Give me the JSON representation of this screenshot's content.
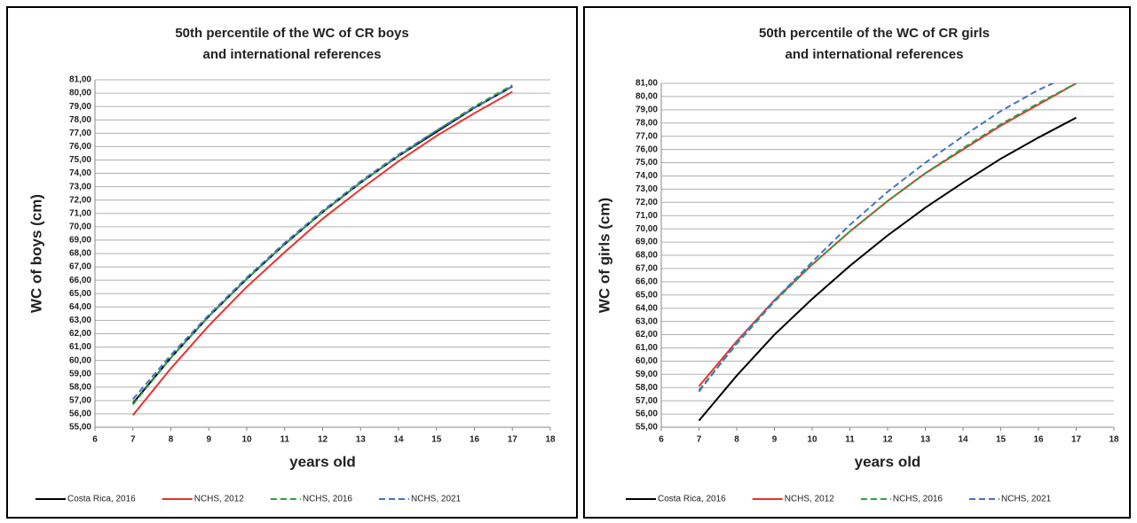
{
  "chart_data": [
    {
      "type": "line",
      "title": [
        "50th percentile of the WC of CR boys",
        "international references"
      ],
      "title_joiner": "and",
      "xlabel": "years old",
      "ylabel": "WC of boys (cm)",
      "x": [
        7,
        8,
        9,
        10,
        11,
        12,
        13,
        14,
        15,
        16,
        17
      ],
      "series": [
        {
          "name": "Costa Rica, 2016",
          "color": "#000000",
          "dash": false,
          "values": [
            56.8,
            60.2,
            63.3,
            66.1,
            68.7,
            71.1,
            73.3,
            75.3,
            77.1,
            78.9,
            80.5
          ]
        },
        {
          "name": "NCHS, 2012",
          "color": "#e8322e",
          "dash": false,
          "values": [
            55.9,
            59.4,
            62.6,
            65.5,
            68.1,
            70.6,
            72.8,
            74.9,
            76.8,
            78.5,
            80.1
          ]
        },
        {
          "name": "NCHS, 2016",
          "color": "#2ea043",
          "dash": true,
          "values": [
            56.7,
            60.2,
            63.3,
            66.1,
            68.7,
            71.1,
            73.3,
            75.3,
            77.2,
            79.0,
            80.6
          ]
        },
        {
          "name": "NCHS, 2021",
          "color": "#4472c4",
          "dash": true,
          "values": [
            57.1,
            60.4,
            63.4,
            66.2,
            68.8,
            71.2,
            73.4,
            75.4,
            77.2,
            78.9,
            80.5
          ]
        }
      ],
      "xlim": [
        6,
        18
      ],
      "xticks": [
        6,
        7,
        8,
        9,
        10,
        11,
        12,
        13,
        14,
        15,
        16,
        17,
        18
      ],
      "ylim": [
        55,
        81
      ],
      "yticks": [
        {
          "value": 55,
          "label": "55,00"
        },
        {
          "value": 56,
          "label": "56,00"
        },
        {
          "value": 57,
          "label": "57,00"
        },
        {
          "value": 58,
          "label": "58,00"
        },
        {
          "value": 59,
          "label": "59,00"
        },
        {
          "value": 60,
          "label": "60,00"
        },
        {
          "value": 61,
          "label": "61,00"
        },
        {
          "value": 62,
          "label": "62,00"
        },
        {
          "value": 63,
          "label": "63,00"
        },
        {
          "value": 64,
          "label": "64,00"
        },
        {
          "value": 65,
          "label": "65,00"
        },
        {
          "value": 66,
          "label": "66,00"
        },
        {
          "value": 67,
          "label": "67,00"
        },
        {
          "value": 68,
          "label": "68,00"
        },
        {
          "value": 69,
          "label": "69,00"
        },
        {
          "value": 70,
          "label": "70,00"
        },
        {
          "value": 71,
          "label": "71,00"
        },
        {
          "value": 72,
          "label": "72,00"
        },
        {
          "value": 73,
          "label": "73,00"
        },
        {
          "value": 74,
          "label": "74,00"
        },
        {
          "value": 75,
          "label": "75,00"
        },
        {
          "value": 76,
          "label": "76,00"
        },
        {
          "value": 77,
          "label": "77,00"
        },
        {
          "value": 78,
          "label": "78,00"
        },
        {
          "value": 79,
          "label": "79,00"
        },
        {
          "value": 80,
          "label": "80,00"
        },
        {
          "value": 81,
          "label": "81,00"
        }
      ],
      "grid": true,
      "legend": "bottom"
    },
    {
      "type": "line",
      "title": [
        "50th percentile of the WC of CR girls",
        "and international references"
      ],
      "xlabel": "years old",
      "ylabel": "WC of girls (cm)",
      "x": [
        7,
        8,
        9,
        10,
        11,
        12,
        13,
        14,
        15,
        16,
        17
      ],
      "series": [
        {
          "name": "Costa Rica, 2016",
          "color": "#000000",
          "dash": false,
          "values": [
            55.5,
            58.9,
            62.0,
            64.7,
            67.2,
            69.5,
            71.6,
            73.5,
            75.3,
            76.9,
            78.4
          ]
        },
        {
          "name": "NCHS, 2012",
          "color": "#e8322e",
          "dash": false,
          "values": [
            58.1,
            61.5,
            64.6,
            67.3,
            69.8,
            72.1,
            74.2,
            76.0,
            77.8,
            79.4,
            81.0
          ]
        },
        {
          "name": "NCHS, 2016",
          "color": "#2ea043",
          "dash": true,
          "values": [
            57.8,
            61.3,
            64.5,
            67.3,
            69.8,
            72.1,
            74.2,
            76.1,
            77.9,
            79.5,
            81.0
          ]
        },
        {
          "name": "NCHS, 2021",
          "color": "#4472c4",
          "dash": true,
          "values": [
            57.7,
            61.4,
            64.6,
            67.5,
            70.3,
            72.8,
            75.0,
            77.0,
            78.9,
            80.5,
            81.8
          ]
        }
      ],
      "xlim": [
        6,
        18
      ],
      "xticks": [
        6,
        7,
        8,
        9,
        10,
        11,
        12,
        13,
        14,
        15,
        16,
        17,
        18
      ],
      "ylim": [
        55,
        81
      ],
      "yticks": [
        {
          "value": 55,
          "label": "55,00"
        },
        {
          "value": 56,
          "label": "56,00"
        },
        {
          "value": 57,
          "label": "57,00"
        },
        {
          "value": 58,
          "label": "58,00"
        },
        {
          "value": 59,
          "label": "59,00"
        },
        {
          "value": 60,
          "label": "60,00"
        },
        {
          "value": 61,
          "label": "61,00"
        },
        {
          "value": 62,
          "label": "62,00"
        },
        {
          "value": 63,
          "label": "63,00"
        },
        {
          "value": 64,
          "label": "64,00"
        },
        {
          "value": 65,
          "label": "65,00"
        },
        {
          "value": 66,
          "label": "66,00"
        },
        {
          "value": 67,
          "label": "67,00"
        },
        {
          "value": 68,
          "label": "68,00"
        },
        {
          "value": 69,
          "label": "69,00"
        },
        {
          "value": 70,
          "label": "70,00"
        },
        {
          "value": 71,
          "label": "71,00"
        },
        {
          "value": 72,
          "label": "72,00"
        },
        {
          "value": 73,
          "label": "73,00"
        },
        {
          "value": 74,
          "label": "74,00"
        },
        {
          "value": 75,
          "label": "75,00"
        },
        {
          "value": 76,
          "label": "76,00"
        },
        {
          "value": 77,
          "label": "77,00"
        },
        {
          "value": 78,
          "label": "78,00"
        },
        {
          "value": 79,
          "label": "79,00"
        },
        {
          "value": 80,
          "label": "80,00"
        },
        {
          "value": 81,
          "label": "81,00"
        }
      ],
      "grid": true,
      "legend": "bottom"
    }
  ]
}
